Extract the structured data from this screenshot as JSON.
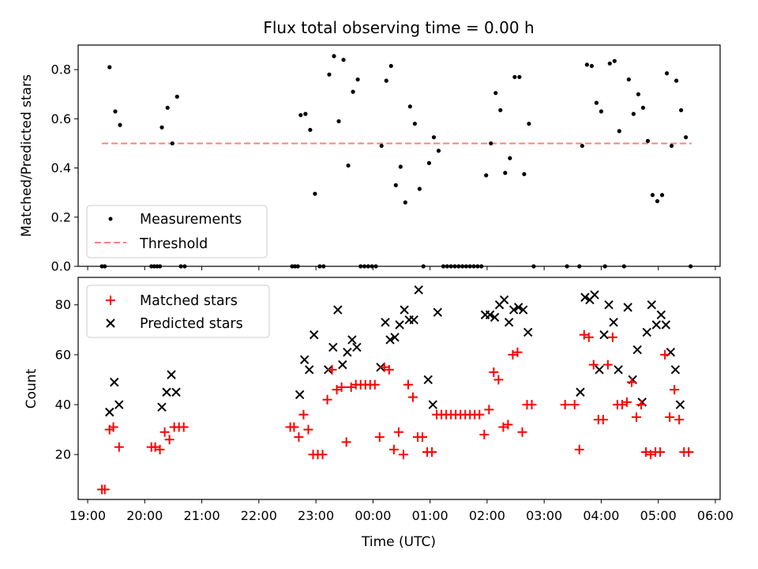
{
  "chart_data": [
    {
      "type": "scatter",
      "title": "Flux total observing time = 0.00 h",
      "xlabel": "",
      "ylabel": "Matched/Predicted stars",
      "xlim": [
        "18:50",
        "06:05"
      ],
      "ylim": [
        0,
        0.9
      ],
      "yticks": [
        "0.0",
        "0.2",
        "0.4",
        "0.6",
        "0.8"
      ],
      "legend_position": "lower-left",
      "colors": {
        "measurements": "#000000",
        "threshold": "#ff7f7f"
      },
      "threshold": {
        "name": "Threshold",
        "value": 0.5,
        "x_start": "19:15",
        "x_end": "05:35"
      },
      "series": [
        {
          "name": "Measurements",
          "points": [
            [
              "19:15",
              0
            ],
            [
              "19:18",
              0
            ],
            [
              "19:23",
              0.81
            ],
            [
              "19:29",
              0.63
            ],
            [
              "19:34",
              0.575
            ],
            [
              "20:07",
              0
            ],
            [
              "20:10",
              0
            ],
            [
              "20:13",
              0
            ],
            [
              "20:16",
              0
            ],
            [
              "20:18",
              0.565
            ],
            [
              "20:24",
              0.645
            ],
            [
              "20:29",
              0.5
            ],
            [
              "20:34",
              0.69
            ],
            [
              "20:38",
              0
            ],
            [
              "20:42",
              0
            ],
            [
              "22:35",
              0
            ],
            [
              "22:38",
              0
            ],
            [
              "22:41",
              0
            ],
            [
              "22:44",
              0.615
            ],
            [
              "22:49",
              0.62
            ],
            [
              "22:54",
              0.555
            ],
            [
              "22:59",
              0.295
            ],
            [
              "23:04",
              0
            ],
            [
              "23:08",
              0
            ],
            [
              "23:14",
              0.78
            ],
            [
              "23:19",
              0.855
            ],
            [
              "23:24",
              0.59
            ],
            [
              "23:29",
              0.84
            ],
            [
              "23:34",
              0.41
            ],
            [
              "23:39",
              0.71
            ],
            [
              "23:44",
              0.76
            ],
            [
              "23:47",
              0
            ],
            [
              "23:51",
              0
            ],
            [
              "23:55",
              0
            ],
            [
              "23:59",
              0
            ],
            [
              "00:03",
              0
            ],
            [
              "00:09",
              0.49
            ],
            [
              "00:14",
              0.755
            ],
            [
              "00:19",
              0.815
            ],
            [
              "00:24",
              0.33
            ],
            [
              "00:29",
              0.405
            ],
            [
              "00:34",
              0.26
            ],
            [
              "00:39",
              0.65
            ],
            [
              "00:44",
              0.58
            ],
            [
              "00:49",
              0.315
            ],
            [
              "00:53",
              0
            ],
            [
              "00:59",
              0.42
            ],
            [
              "01:04",
              0.525
            ],
            [
              "01:09",
              0.47
            ],
            [
              "01:14",
              0
            ],
            [
              "01:18",
              0
            ],
            [
              "01:22",
              0
            ],
            [
              "01:26",
              0
            ],
            [
              "01:30",
              0
            ],
            [
              "01:34",
              0
            ],
            [
              "01:38",
              0
            ],
            [
              "01:42",
              0
            ],
            [
              "01:46",
              0
            ],
            [
              "01:50",
              0
            ],
            [
              "01:54",
              0
            ],
            [
              "01:59",
              0.37
            ],
            [
              "02:04",
              0.5
            ],
            [
              "02:09",
              0.705
            ],
            [
              "02:14",
              0.635
            ],
            [
              "02:19",
              0.38
            ],
            [
              "02:24",
              0.44
            ],
            [
              "02:29",
              0.77
            ],
            [
              "02:34",
              0.77
            ],
            [
              "02:39",
              0.375
            ],
            [
              "02:44",
              0.58
            ],
            [
              "02:49",
              0
            ],
            [
              "03:24",
              0
            ],
            [
              "03:37",
              0
            ],
            [
              "03:40",
              0.49
            ],
            [
              "03:45",
              0.82
            ],
            [
              "03:50",
              0.815
            ],
            [
              "03:55",
              0.665
            ],
            [
              "04:00",
              0.63
            ],
            [
              "04:04",
              0
            ],
            [
              "04:09",
              0.825
            ],
            [
              "04:14",
              0.835
            ],
            [
              "04:19",
              0.55
            ],
            [
              "04:24",
              0
            ],
            [
              "04:29",
              0.76
            ],
            [
              "04:34",
              0.62
            ],
            [
              "04:39",
              0.7
            ],
            [
              "04:44",
              0.645
            ],
            [
              "04:49",
              0.51
            ],
            [
              "04:54",
              0.29
            ],
            [
              "04:59",
              0.265
            ],
            [
              "05:04",
              0.29
            ],
            [
              "05:09",
              0.785
            ],
            [
              "05:14",
              0.49
            ],
            [
              "05:19",
              0.755
            ],
            [
              "05:24",
              0.635
            ],
            [
              "05:29",
              0.525
            ],
            [
              "05:34",
              0
            ]
          ]
        }
      ]
    },
    {
      "type": "scatter",
      "title": "",
      "xlabel": "Time (UTC)",
      "ylabel": "Count",
      "xlim": [
        "18:50",
        "06:05"
      ],
      "ylim": [
        2,
        91
      ],
      "xticks": [
        "19:00",
        "20:00",
        "21:00",
        "22:00",
        "23:00",
        "00:00",
        "01:00",
        "02:00",
        "03:00",
        "04:00",
        "05:00",
        "06:00"
      ],
      "yticks": [
        "20",
        "40",
        "60",
        "80"
      ],
      "legend_position": "top-left",
      "colors": {
        "matched": "#ff0000",
        "predicted": "#000000"
      },
      "series": [
        {
          "name": "Matched stars",
          "marker": "+",
          "points": [
            [
              "19:15",
              6
            ],
            [
              "19:18",
              6
            ],
            [
              "19:23",
              30
            ],
            [
              "19:27",
              31
            ],
            [
              "19:33",
              23
            ],
            [
              "20:07",
              23
            ],
            [
              "20:11",
              23
            ],
            [
              "20:16",
              22
            ],
            [
              "20:21",
              29
            ],
            [
              "20:26",
              26
            ],
            [
              "20:31",
              31
            ],
            [
              "20:36",
              31
            ],
            [
              "20:41",
              31
            ],
            [
              "22:33",
              31
            ],
            [
              "22:37",
              31
            ],
            [
              "22:42",
              27
            ],
            [
              "22:47",
              36
            ],
            [
              "22:52",
              30
            ],
            [
              "22:57",
              20
            ],
            [
              "23:02",
              20
            ],
            [
              "23:07",
              20
            ],
            [
              "23:12",
              42
            ],
            [
              "23:17",
              54
            ],
            [
              "23:22",
              46
            ],
            [
              "23:27",
              47
            ],
            [
              "23:32",
              25
            ],
            [
              "23:37",
              47
            ],
            [
              "23:42",
              48
            ],
            [
              "23:47",
              48
            ],
            [
              "23:52",
              48
            ],
            [
              "23:57",
              48
            ],
            [
              "00:02",
              48
            ],
            [
              "00:07",
              27
            ],
            [
              "00:12",
              55
            ],
            [
              "00:17",
              54
            ],
            [
              "00:22",
              22
            ],
            [
              "00:27",
              29
            ],
            [
              "00:32",
              20
            ],
            [
              "00:37",
              48
            ],
            [
              "00:42",
              43
            ],
            [
              "00:47",
              27
            ],
            [
              "00:52",
              27
            ],
            [
              "00:57",
              21
            ],
            [
              "01:02",
              21
            ],
            [
              "01:07",
              36
            ],
            [
              "01:12",
              36
            ],
            [
              "01:17",
              36
            ],
            [
              "01:22",
              36
            ],
            [
              "01:27",
              36
            ],
            [
              "01:32",
              36
            ],
            [
              "01:37",
              36
            ],
            [
              "01:42",
              36
            ],
            [
              "01:47",
              36
            ],
            [
              "01:52",
              36
            ],
            [
              "01:57",
              28
            ],
            [
              "02:02",
              38
            ],
            [
              "02:07",
              53
            ],
            [
              "02:12",
              50
            ],
            [
              "02:17",
              31
            ],
            [
              "02:22",
              32
            ],
            [
              "02:27",
              60
            ],
            [
              "02:32",
              61
            ],
            [
              "02:37",
              29
            ],
            [
              "02:42",
              40
            ],
            [
              "02:47",
              40
            ],
            [
              "03:22",
              40
            ],
            [
              "03:32",
              40
            ],
            [
              "03:37",
              22
            ],
            [
              "03:42",
              68
            ],
            [
              "03:47",
              67
            ],
            [
              "03:52",
              56
            ],
            [
              "03:57",
              34
            ],
            [
              "04:02",
              34
            ],
            [
              "04:07",
              56
            ],
            [
              "04:12",
              67
            ],
            [
              "04:17",
              40
            ],
            [
              "04:22",
              40
            ],
            [
              "04:27",
              41
            ],
            [
              "04:32",
              49
            ],
            [
              "04:37",
              35
            ],
            [
              "04:42",
              40
            ],
            [
              "04:47",
              21
            ],
            [
              "04:52",
              20
            ],
            [
              "04:57",
              21
            ],
            [
              "05:02",
              21
            ],
            [
              "05:07",
              60
            ],
            [
              "05:12",
              35
            ],
            [
              "05:17",
              46
            ],
            [
              "05:22",
              34
            ],
            [
              "05:27",
              21
            ],
            [
              "05:32",
              21
            ]
          ]
        },
        {
          "name": "Predicted stars",
          "marker": "x",
          "points": [
            [
              "19:23",
              37
            ],
            [
              "19:28",
              49
            ],
            [
              "19:33",
              40
            ],
            [
              "20:18",
              39
            ],
            [
              "20:23",
              45
            ],
            [
              "20:28",
              52
            ],
            [
              "20:33",
              45
            ],
            [
              "22:43",
              44
            ],
            [
              "22:48",
              58
            ],
            [
              "22:53",
              54
            ],
            [
              "22:58",
              68
            ],
            [
              "23:13",
              54
            ],
            [
              "23:18",
              63
            ],
            [
              "23:23",
              78
            ],
            [
              "23:28",
              56
            ],
            [
              "23:33",
              61
            ],
            [
              "23:38",
              66
            ],
            [
              "23:43",
              63
            ],
            [
              "00:08",
              55
            ],
            [
              "00:13",
              73
            ],
            [
              "00:18",
              66
            ],
            [
              "00:23",
              67
            ],
            [
              "00:28",
              72
            ],
            [
              "00:33",
              78
            ],
            [
              "00:38",
              74
            ],
            [
              "00:43",
              74
            ],
            [
              "00:48",
              86
            ],
            [
              "00:58",
              50
            ],
            [
              "01:03",
              40
            ],
            [
              "01:08",
              77
            ],
            [
              "01:58",
              76
            ],
            [
              "02:03",
              76
            ],
            [
              "02:08",
              75
            ],
            [
              "02:13",
              80
            ],
            [
              "02:18",
              82
            ],
            [
              "02:23",
              73
            ],
            [
              "02:28",
              78
            ],
            [
              "02:33",
              79
            ],
            [
              "02:38",
              78
            ],
            [
              "02:43",
              69
            ],
            [
              "03:38",
              45
            ],
            [
              "03:43",
              83
            ],
            [
              "03:48",
              82
            ],
            [
              "03:53",
              84
            ],
            [
              "03:58",
              54
            ],
            [
              "04:03",
              68
            ],
            [
              "04:08",
              80
            ],
            [
              "04:13",
              73
            ],
            [
              "04:18",
              54
            ],
            [
              "04:28",
              79
            ],
            [
              "04:33",
              50
            ],
            [
              "04:38",
              62
            ],
            [
              "04:43",
              41
            ],
            [
              "04:48",
              69
            ],
            [
              "04:53",
              80
            ],
            [
              "04:58",
              72
            ],
            [
              "05:03",
              76
            ],
            [
              "05:08",
              72
            ],
            [
              "05:13",
              61
            ],
            [
              "05:18",
              54
            ],
            [
              "05:23",
              40
            ]
          ]
        }
      ]
    }
  ]
}
